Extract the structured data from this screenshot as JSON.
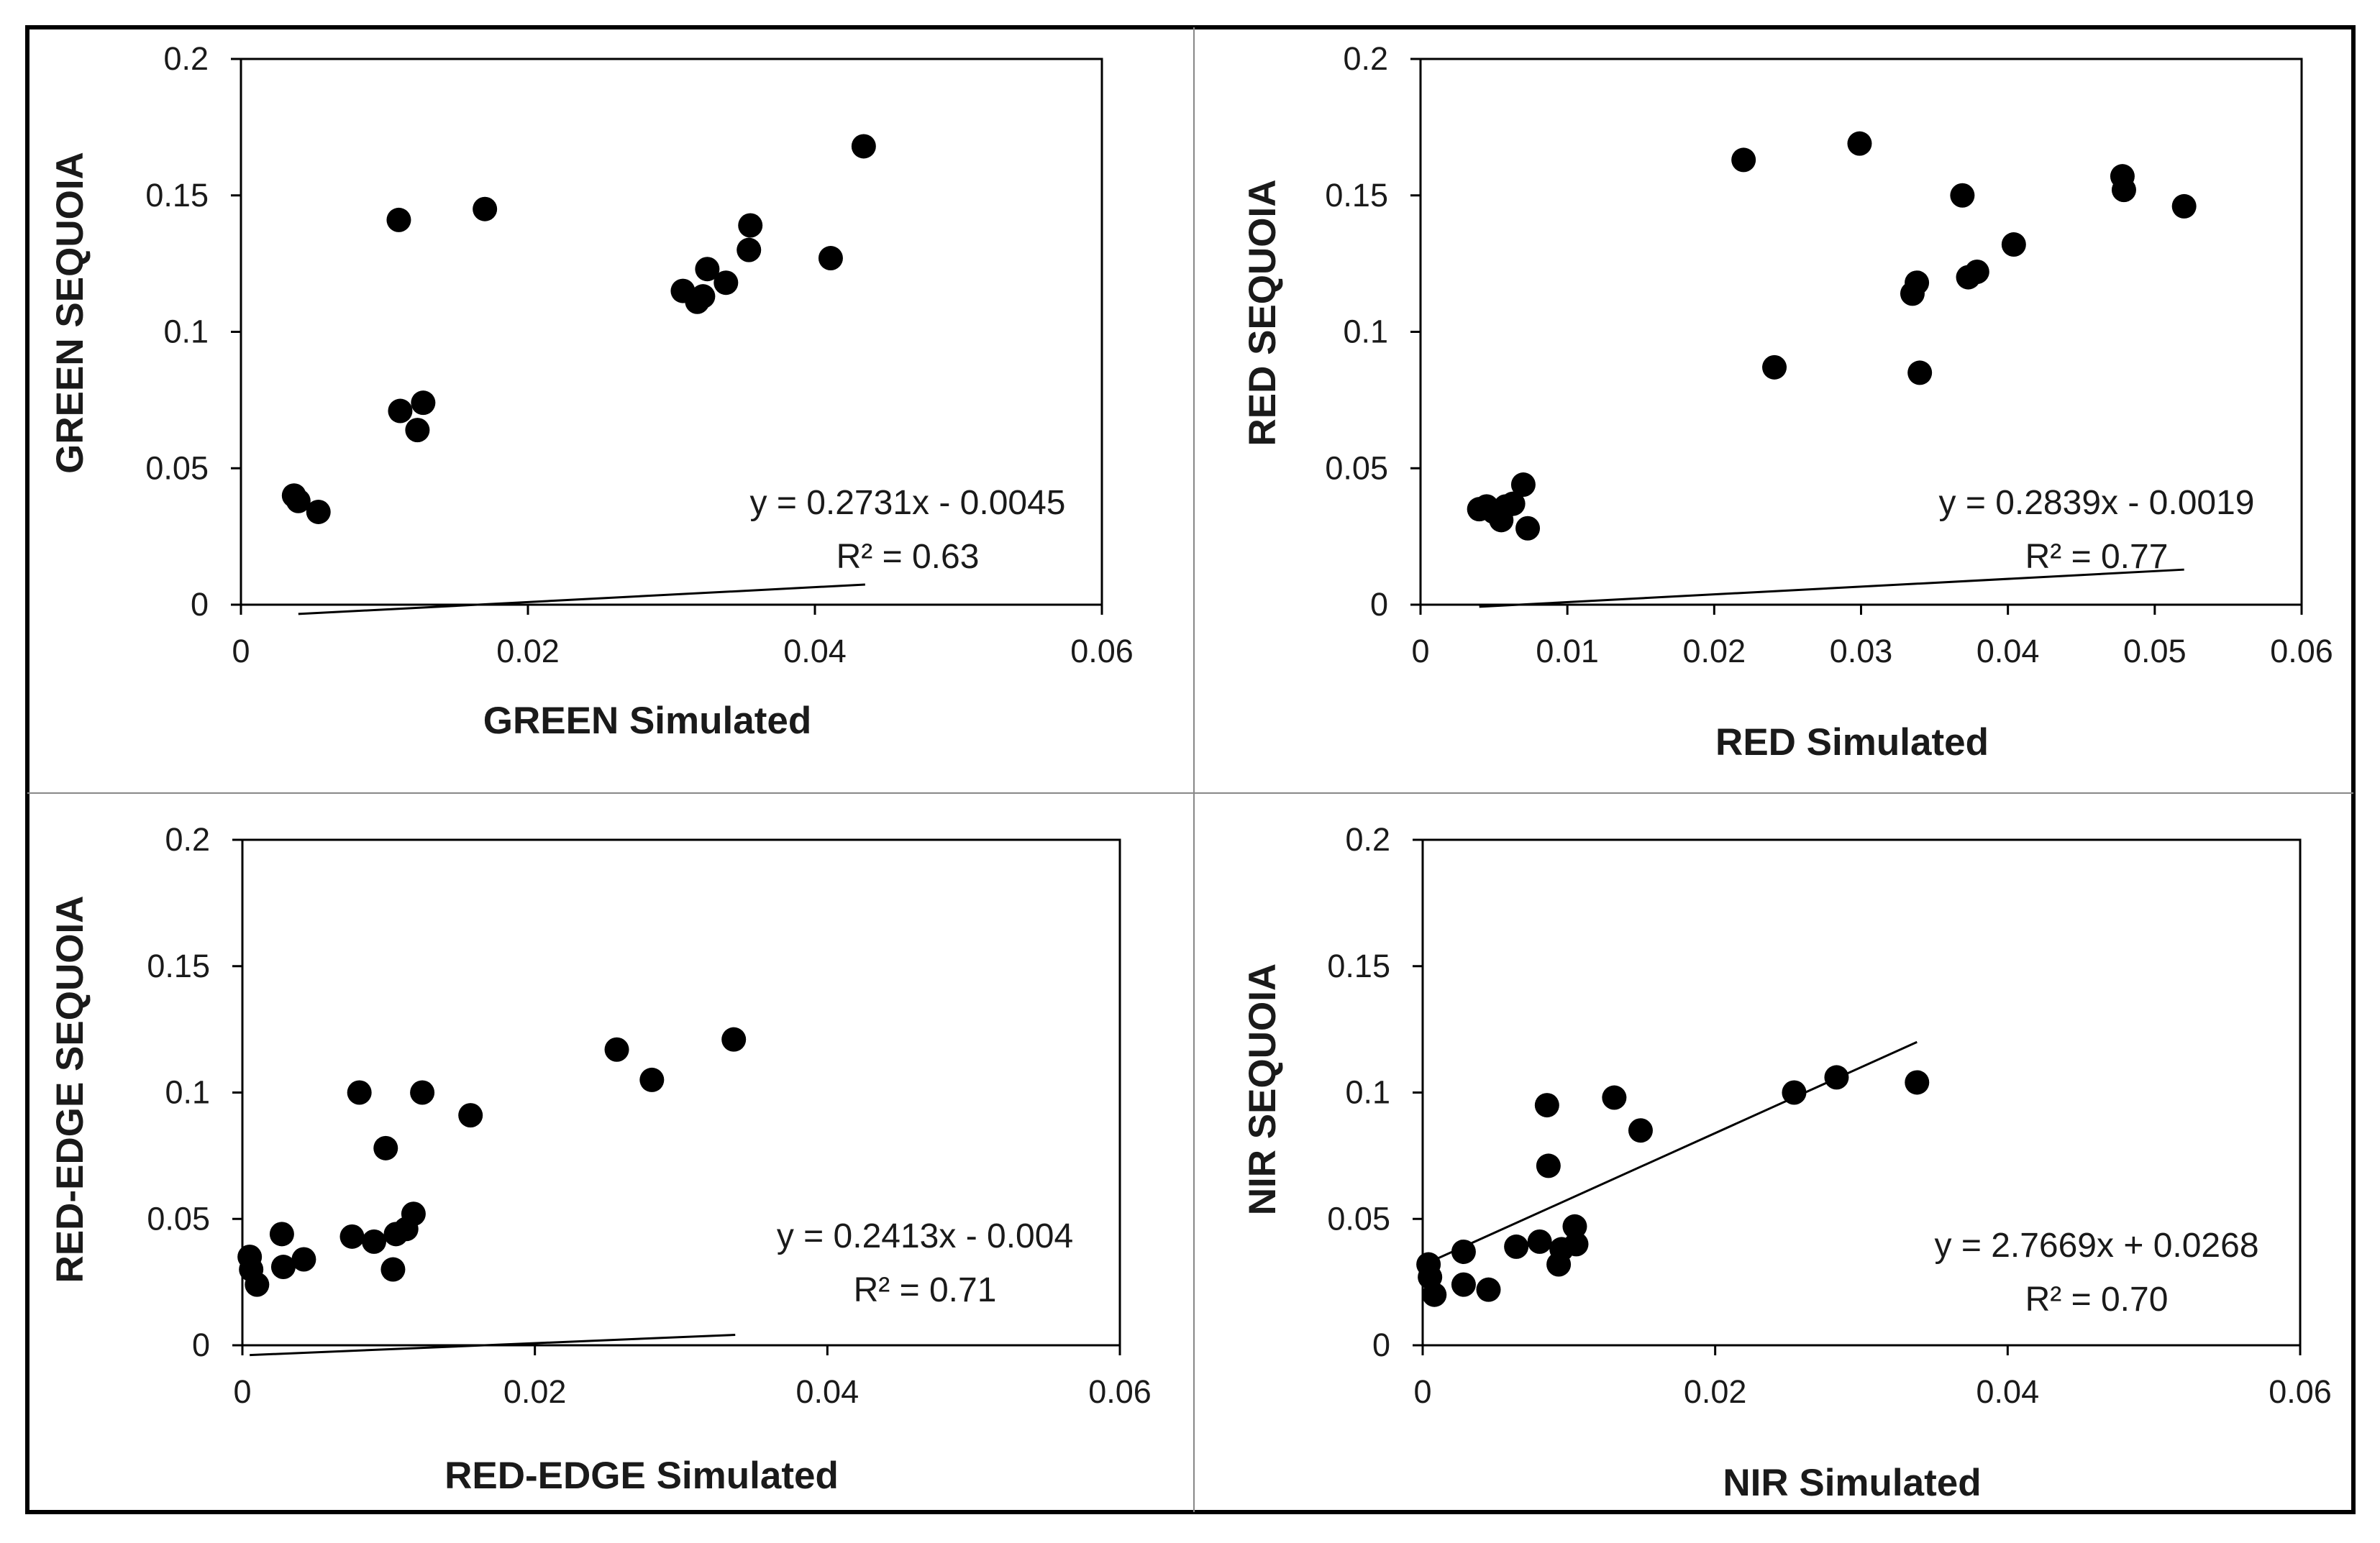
{
  "chart_data": [
    {
      "type": "scatter",
      "panel": "top-left",
      "xlabel": "GREEN Simulated",
      "ylabel": "GREEN SEQUOIA",
      "xlim": [
        0,
        0.06
      ],
      "ylim": [
        0,
        0.2
      ],
      "xticks": [
        "0",
        "0.02",
        "0.04",
        "0.06"
      ],
      "yticks": [
        "0",
        "0.05",
        "0.1",
        "0.15",
        "0.2"
      ],
      "equation": "y = 0.2731x - 0.0045",
      "r2": "R² = 0.63",
      "trendline": {
        "slope": 0.2731,
        "intercept": -0.0045,
        "x_range": [
          0.004,
          0.0435
        ]
      },
      "points": [
        {
          "x": 0.0037,
          "y": 0.04
        },
        {
          "x": 0.004,
          "y": 0.038
        },
        {
          "x": 0.0054,
          "y": 0.034
        },
        {
          "x": 0.011,
          "y": 0.141
        },
        {
          "x": 0.0111,
          "y": 0.071
        },
        {
          "x": 0.0123,
          "y": 0.064
        },
        {
          "x": 0.0127,
          "y": 0.074
        },
        {
          "x": 0.017,
          "y": 0.145
        },
        {
          "x": 0.0308,
          "y": 0.115
        },
        {
          "x": 0.0318,
          "y": 0.111
        },
        {
          "x": 0.0322,
          "y": 0.113
        },
        {
          "x": 0.0325,
          "y": 0.123
        },
        {
          "x": 0.0338,
          "y": 0.118
        },
        {
          "x": 0.0354,
          "y": 0.13
        },
        {
          "x": 0.0355,
          "y": 0.139
        },
        {
          "x": 0.0411,
          "y": 0.127
        },
        {
          "x": 0.0434,
          "y": 0.168
        }
      ]
    },
    {
      "type": "scatter",
      "panel": "top-right",
      "xlabel": "RED Simulated",
      "ylabel": "RED SEQUOIA",
      "xlim": [
        0,
        0.06
      ],
      "ylim": [
        0,
        0.2
      ],
      "xticks": [
        "0",
        "0.01",
        "0.02",
        "0.03",
        "0.04",
        "0.05",
        "0.06"
      ],
      "yticks": [
        "0",
        "0.05",
        "0.1",
        "0.15",
        "0.2"
      ],
      "equation": "y = 0.2839x - 0.0019",
      "r2": "R² = 0.77",
      "trendline": {
        "slope": 0.2839,
        "intercept": -0.0019,
        "x_range": [
          0.004,
          0.052
        ]
      },
      "points": [
        {
          "x": 0.004,
          "y": 0.035
        },
        {
          "x": 0.0045,
          "y": 0.036
        },
        {
          "x": 0.005,
          "y": 0.034
        },
        {
          "x": 0.0055,
          "y": 0.031
        },
        {
          "x": 0.0058,
          "y": 0.036
        },
        {
          "x": 0.0063,
          "y": 0.037
        },
        {
          "x": 0.007,
          "y": 0.044
        },
        {
          "x": 0.0073,
          "y": 0.028
        },
        {
          "x": 0.022,
          "y": 0.163
        },
        {
          "x": 0.0241,
          "y": 0.087
        },
        {
          "x": 0.0299,
          "y": 0.169
        },
        {
          "x": 0.0335,
          "y": 0.114
        },
        {
          "x": 0.0338,
          "y": 0.118
        },
        {
          "x": 0.034,
          "y": 0.085
        },
        {
          "x": 0.0369,
          "y": 0.15
        },
        {
          "x": 0.0373,
          "y": 0.12
        },
        {
          "x": 0.0379,
          "y": 0.122
        },
        {
          "x": 0.0404,
          "y": 0.132
        },
        {
          "x": 0.0478,
          "y": 0.157
        },
        {
          "x": 0.0479,
          "y": 0.152
        },
        {
          "x": 0.052,
          "y": 0.146
        }
      ]
    },
    {
      "type": "scatter",
      "panel": "bottom-left",
      "xlabel": "RED-EDGE Simulated",
      "ylabel": "RED-EDGE SEQUOIA",
      "xlim": [
        0,
        0.06
      ],
      "ylim": [
        0,
        0.2
      ],
      "xticks": [
        "0",
        "0.02",
        "0.04",
        "0.06"
      ],
      "yticks": [
        "0",
        "0.05",
        "0.1",
        "0.15",
        "0.2"
      ],
      "equation": "y = 0.2413x - 0.004",
      "r2": "R² = 0.71",
      "trendline": {
        "slope": 0.2413,
        "intercept": -0.004,
        "x_range": [
          0.0005,
          0.0337
        ]
      },
      "points": [
        {
          "x": 0.0005,
          "y": 0.035
        },
        {
          "x": 0.0006,
          "y": 0.03
        },
        {
          "x": 0.001,
          "y": 0.024
        },
        {
          "x": 0.0027,
          "y": 0.044
        },
        {
          "x": 0.0028,
          "y": 0.031
        },
        {
          "x": 0.0042,
          "y": 0.034
        },
        {
          "x": 0.0075,
          "y": 0.043
        },
        {
          "x": 0.008,
          "y": 0.1
        },
        {
          "x": 0.009,
          "y": 0.041
        },
        {
          "x": 0.0098,
          "y": 0.078
        },
        {
          "x": 0.0103,
          "y": 0.03
        },
        {
          "x": 0.0105,
          "y": 0.044
        },
        {
          "x": 0.0112,
          "y": 0.046
        },
        {
          "x": 0.0117,
          "y": 0.052
        },
        {
          "x": 0.0123,
          "y": 0.1
        },
        {
          "x": 0.0156,
          "y": 0.091
        },
        {
          "x": 0.0256,
          "y": 0.117
        },
        {
          "x": 0.028,
          "y": 0.105
        },
        {
          "x": 0.0336,
          "y": 0.121
        }
      ]
    },
    {
      "type": "scatter",
      "panel": "bottom-right",
      "xlabel": "NIR Simulated",
      "ylabel": "NIR SEQUOIA",
      "xlim": [
        0,
        0.06
      ],
      "ylim": [
        0,
        0.2
      ],
      "xticks": [
        "0",
        "0.02",
        "0.04",
        "0.06"
      ],
      "yticks": [
        "0",
        "0.05",
        "0.1",
        "0.15",
        "0.2"
      ],
      "equation": "y = 2.7669x + 0.0268",
      "r2": "R² = 0.70",
      "trendline": {
        "x_range": [
          0.0005,
          0.0338
        ],
        "y_range": [
          0.033,
          0.12
        ]
      },
      "points": [
        {
          "x": 0.0004,
          "y": 0.032
        },
        {
          "x": 0.0005,
          "y": 0.027
        },
        {
          "x": 0.0008,
          "y": 0.02
        },
        {
          "x": 0.0028,
          "y": 0.037
        },
        {
          "x": 0.0028,
          "y": 0.024
        },
        {
          "x": 0.0045,
          "y": 0.022
        },
        {
          "x": 0.0064,
          "y": 0.039
        },
        {
          "x": 0.008,
          "y": 0.041
        },
        {
          "x": 0.0085,
          "y": 0.095
        },
        {
          "x": 0.0086,
          "y": 0.071
        },
        {
          "x": 0.0093,
          "y": 0.032
        },
        {
          "x": 0.0095,
          "y": 0.038
        },
        {
          "x": 0.0104,
          "y": 0.047
        },
        {
          "x": 0.0105,
          "y": 0.04
        },
        {
          "x": 0.0131,
          "y": 0.098
        },
        {
          "x": 0.0149,
          "y": 0.085
        },
        {
          "x": 0.0254,
          "y": 0.1
        },
        {
          "x": 0.0283,
          "y": 0.106
        },
        {
          "x": 0.0338,
          "y": 0.104
        }
      ]
    }
  ]
}
